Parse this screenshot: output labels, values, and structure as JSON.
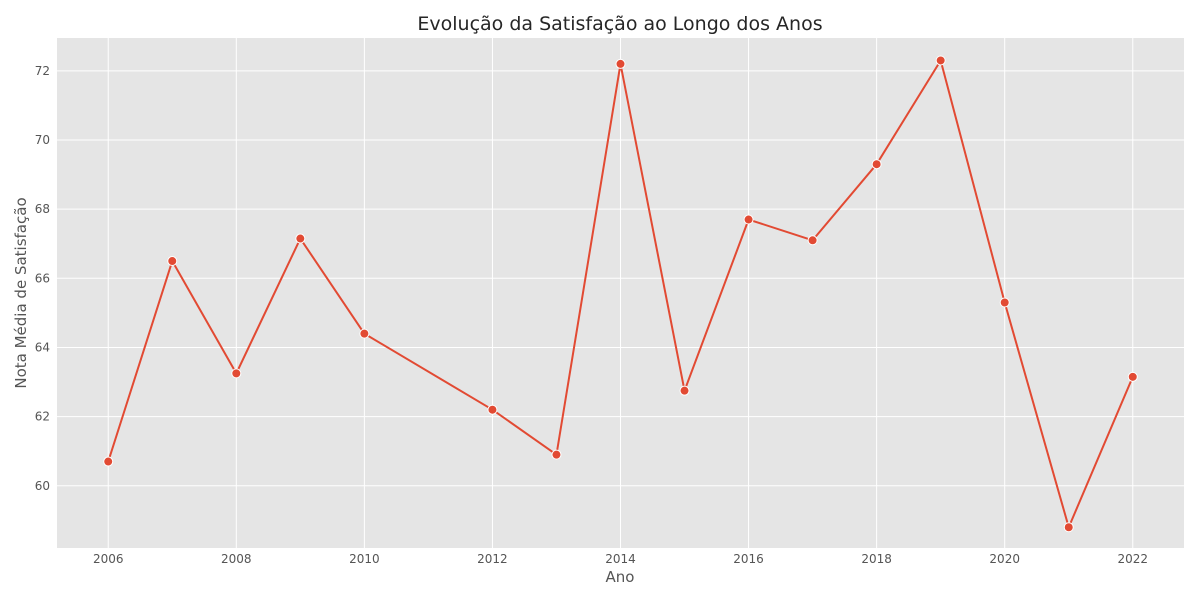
{
  "chart_data": {
    "type": "line",
    "title": "Evolução da Satisfação ao Longo dos Anos",
    "xlabel": "Ano",
    "ylabel": "Nota Média de Satisfação",
    "x": [
      2006,
      2007,
      2008,
      2009,
      2010,
      2012,
      2013,
      2014,
      2015,
      2016,
      2017,
      2018,
      2019,
      2020,
      2021,
      2022
    ],
    "values": [
      60.7,
      66.5,
      63.25,
      67.15,
      64.4,
      62.2,
      60.9,
      72.2,
      62.75,
      67.7,
      67.1,
      69.3,
      72.3,
      65.3,
      58.8,
      63.15
    ],
    "xlim": [
      2005.2,
      2022.8
    ],
    "ylim": [
      58.2,
      72.95
    ],
    "xticks": [
      2006,
      2008,
      2010,
      2012,
      2014,
      2016,
      2018,
      2020,
      2022
    ],
    "yticks": [
      60,
      62,
      64,
      66,
      68,
      70,
      72
    ],
    "grid": true,
    "line_color": "#e24a33",
    "plot_background": "#e5e5e5",
    "grid_color": "#ffffff"
  }
}
